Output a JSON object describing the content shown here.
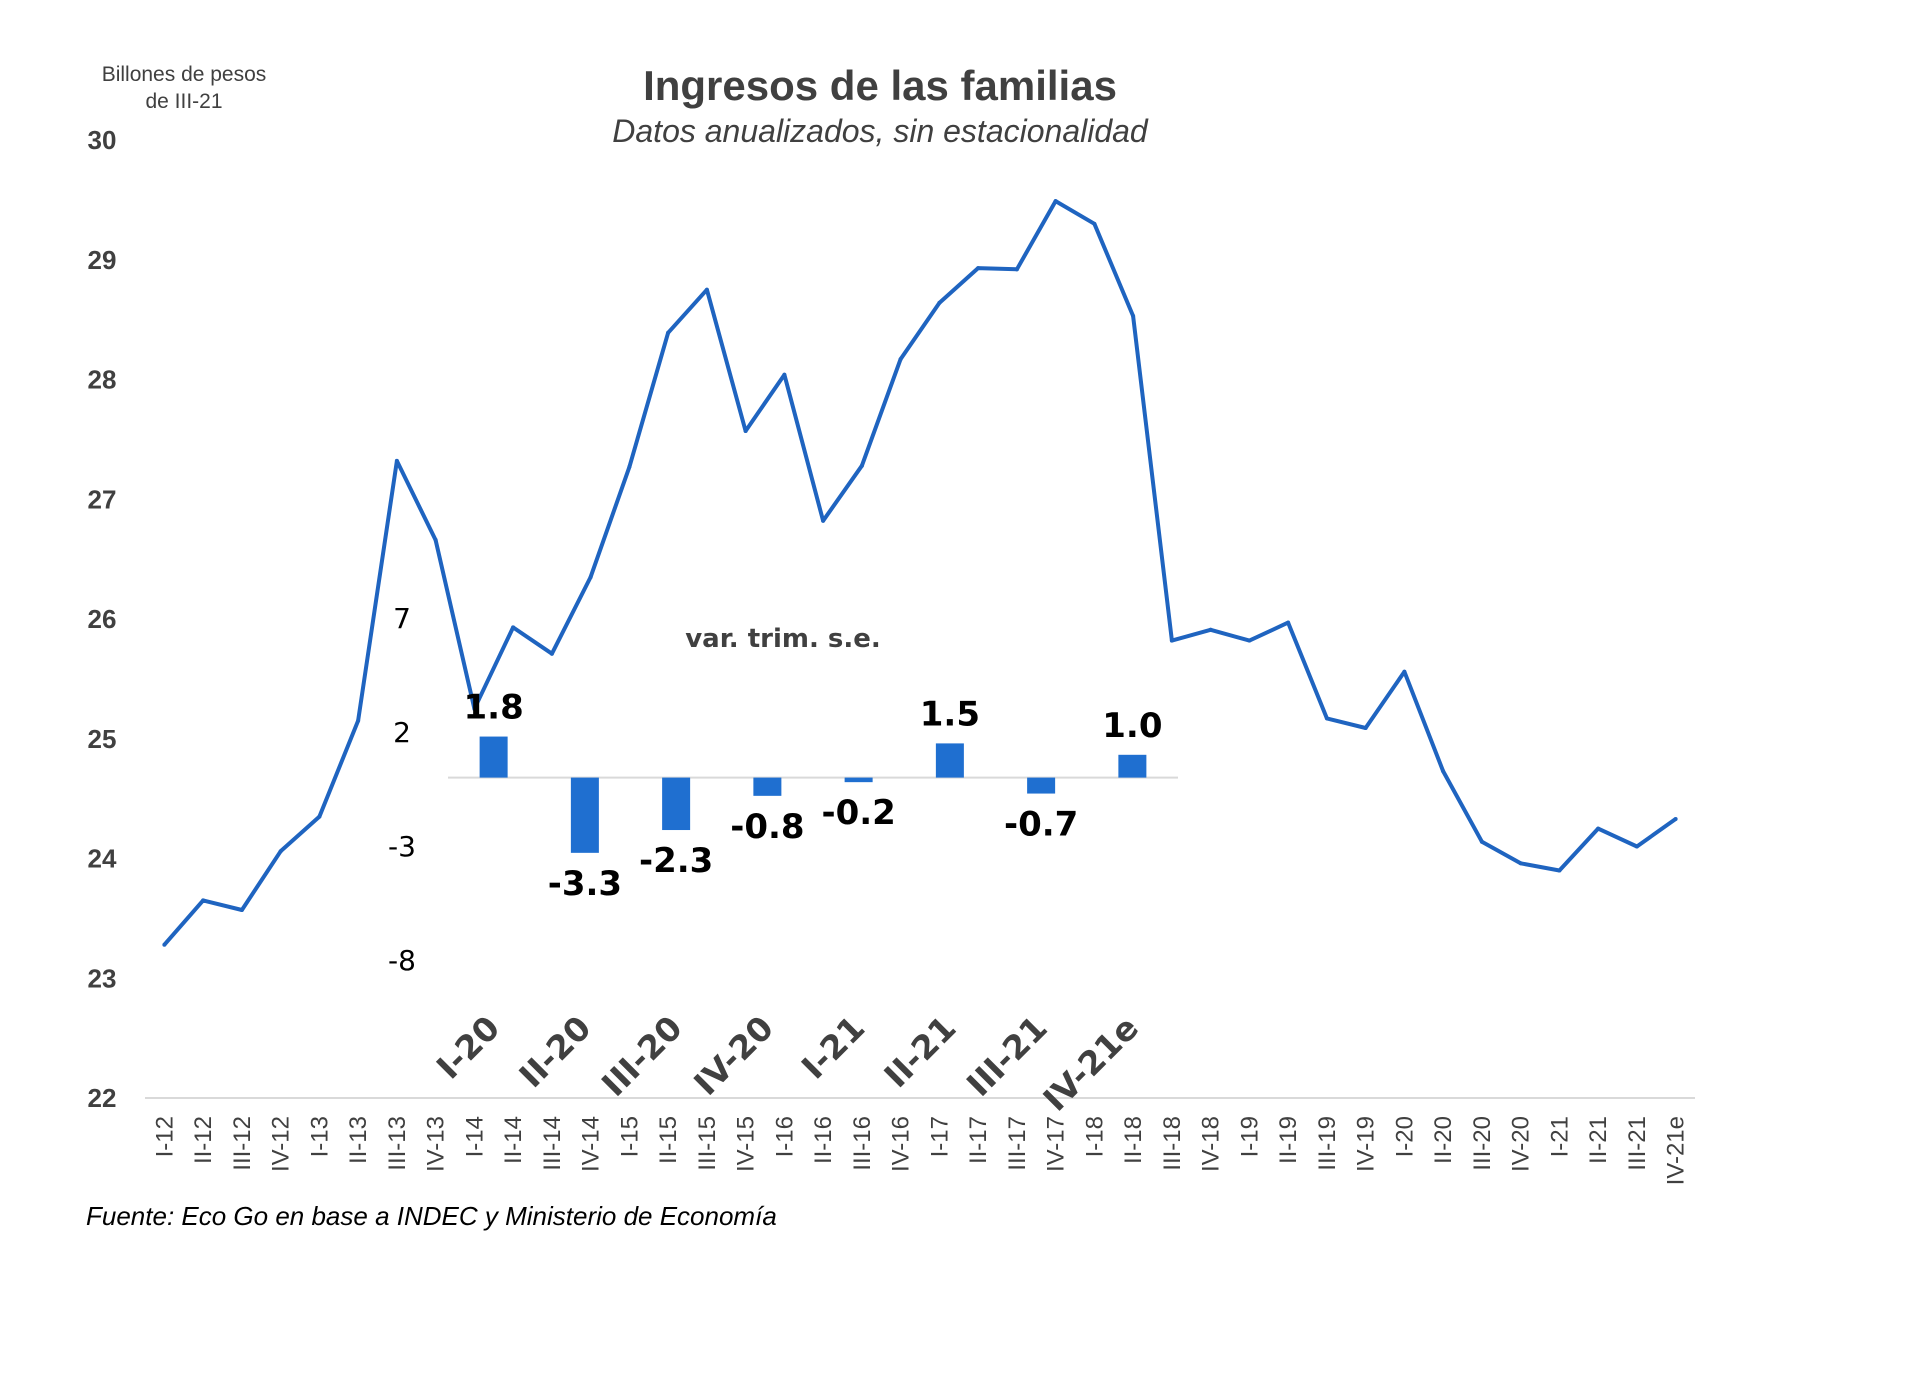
{
  "colors": {
    "line": "#1f64c0",
    "bar": "#1f6fd0",
    "axis": "#d9d9d9",
    "text": "#404040"
  },
  "chart_data": [
    {
      "type": "line",
      "title": "Ingresos de las familias",
      "subtitle": "Datos anualizados, sin estacionalidad",
      "ylabel_line1": "Billones de pesos",
      "ylabel_line2": "de III-21",
      "xlabel": "",
      "ylim": [
        22,
        30
      ],
      "yticks": [
        "22",
        "23",
        "24",
        "25",
        "26",
        "27",
        "28",
        "29",
        "30"
      ],
      "grid": false,
      "source": "Fuente:  Eco Go en base a INDEC y Ministerio de Economía",
      "categories": [
        "I-12",
        "II-12",
        "III-12",
        "IV-12",
        "I-13",
        "II-13",
        "III-13",
        "IV-13",
        "I-14",
        "II-14",
        "III-14",
        "IV-14",
        "I-15",
        "II-15",
        "III-15",
        "IV-15",
        "I-16",
        "II-16",
        "III-16",
        "IV-16",
        "I-17",
        "II-17",
        "III-17",
        "IV-17",
        "I-18",
        "II-18",
        "III-18",
        "IV-18",
        "I-19",
        "II-19",
        "III-19",
        "IV-19",
        "I-20",
        "II-20",
        "III-20",
        "IV-20",
        "I-21",
        "II-21",
        "III-21",
        "IV-21e"
      ],
      "values": [
        23.28,
        23.65,
        23.57,
        24.06,
        24.35,
        25.15,
        27.32,
        26.66,
        25.25,
        25.93,
        25.71,
        26.35,
        27.27,
        28.39,
        28.75,
        27.57,
        28.04,
        26.82,
        27.28,
        28.17,
        28.64,
        28.93,
        28.92,
        29.49,
        29.3,
        28.53,
        25.82,
        25.91,
        25.82,
        25.97,
        25.17,
        25.09,
        25.56,
        24.73,
        24.14,
        23.96,
        23.9,
        24.25,
        24.1,
        24.33
      ]
    },
    {
      "type": "bar",
      "title": "var. trim. s.e.",
      "ylim": [
        -8,
        7
      ],
      "yticks": [
        "7",
        "2",
        "-3",
        "-8"
      ],
      "categories": [
        "I-20",
        "II-20",
        "III-20",
        "IV-20",
        "I-21",
        "II-21",
        "III-21",
        "IV-21e"
      ],
      "values": [
        1.8,
        -3.3,
        -2.3,
        -0.8,
        -0.2,
        1.5,
        -0.7,
        1.0
      ],
      "value_labels": [
        "1.8",
        "-3.3",
        "-2.3",
        "-0.8",
        "-0.2",
        "1.5",
        "-0.7",
        "1.0"
      ]
    }
  ]
}
